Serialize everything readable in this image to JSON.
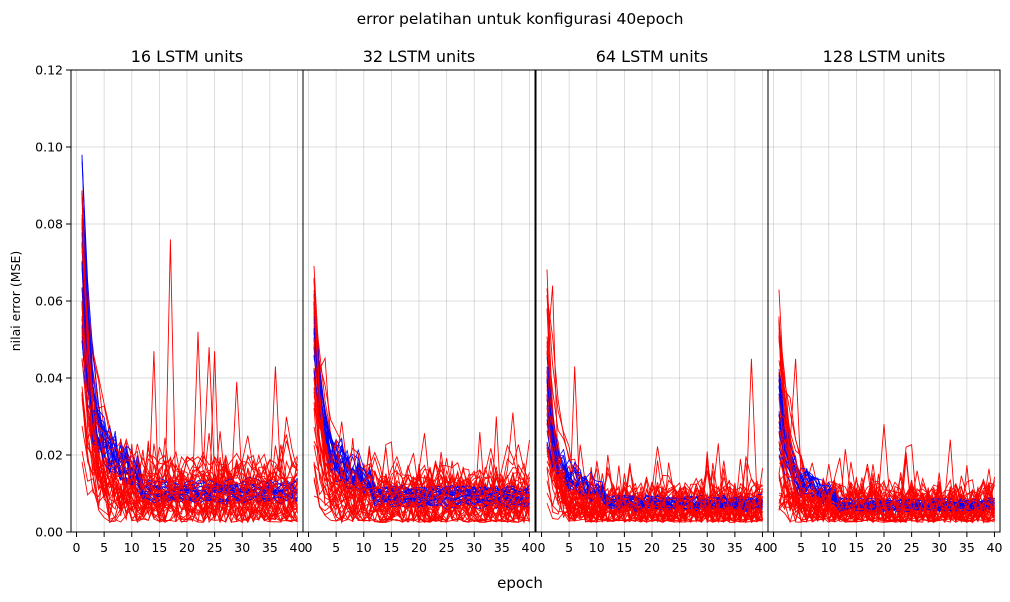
{
  "chart_data": {
    "type": "line",
    "title": "error pelatihan untuk konfigurasi 40epoch",
    "xlabel": "epoch",
    "ylabel": "nilai error (MSE)",
    "xlim": [
      -1,
      41
    ],
    "ylim": [
      0,
      0.12
    ],
    "x_ticks": [
      0,
      5,
      10,
      15,
      20,
      25,
      30,
      35,
      40
    ],
    "y_ticks": [
      "0.00",
      "0.02",
      "0.04",
      "0.06",
      "0.08",
      "0.10",
      "0.12"
    ],
    "grid": true,
    "series_colors": {
      "blue": "#0000ff",
      "red": "#ff0000"
    },
    "panels": [
      {
        "title": "16 LSTM units",
        "blue_band": {
          "start": [
            0.045,
            0.1
          ],
          "plateau_early": [
            0.015,
            0.035
          ],
          "end": [
            0.008,
            0.013
          ]
        },
        "red_band": {
          "start": [
            0.015,
            0.091
          ],
          "end": [
            0.003,
            0.016
          ]
        },
        "red_spikes": [
          [
            17,
            0.076
          ],
          [
            22,
            0.052
          ],
          [
            24,
            0.048
          ],
          [
            25,
            0.047
          ],
          [
            29,
            0.039
          ],
          [
            36,
            0.043
          ],
          [
            14,
            0.047
          ]
        ]
      },
      {
        "title": "32 LSTM units",
        "blue_band": {
          "start": [
            0.04,
            0.062
          ],
          "plateau_early": [
            0.012,
            0.03
          ],
          "end": [
            0.007,
            0.011
          ]
        },
        "red_band": {
          "start": [
            0.012,
            0.067
          ],
          "end": [
            0.003,
            0.014
          ]
        },
        "red_spikes": [
          [
            31,
            0.026
          ],
          [
            34,
            0.03
          ]
        ]
      },
      {
        "title": "64 LSTM units",
        "blue_band": {
          "start": [
            0.02,
            0.047
          ],
          "plateau_early": [
            0.01,
            0.022
          ],
          "end": [
            0.006,
            0.009
          ]
        },
        "red_band": {
          "start": [
            0.005,
            0.064
          ],
          "end": [
            0.003,
            0.01
          ]
        },
        "red_spikes": [
          [
            2,
            0.064
          ],
          [
            6,
            0.043
          ],
          [
            38,
            0.045
          ],
          [
            32,
            0.023
          ]
        ]
      },
      {
        "title": "128 LSTM units",
        "blue_band": {
          "start": [
            0.02,
            0.043
          ],
          "plateau_early": [
            0.01,
            0.02
          ],
          "end": [
            0.006,
            0.008
          ]
        },
        "red_band": {
          "start": [
            0.005,
            0.056
          ],
          "end": [
            0.003,
            0.009
          ]
        },
        "red_spikes": [
          [
            1,
            0.056
          ],
          [
            4,
            0.045
          ],
          [
            20,
            0.028
          ],
          [
            32,
            0.024
          ]
        ]
      }
    ]
  }
}
